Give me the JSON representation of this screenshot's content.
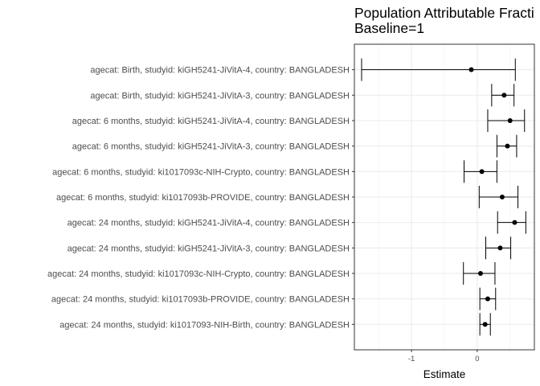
{
  "chart_data": {
    "type": "errorbar",
    "title_lines": [
      "Population Attributable Fracti",
      "Baseline=1"
    ],
    "xlabel": "Estimate",
    "ylabel": "",
    "xlim": [
      -1.87,
      0.87
    ],
    "xticks": [
      -1,
      0
    ],
    "xtick_labels": [
      "-1",
      "0"
    ],
    "grid": true,
    "categories": [
      "agecat: Birth, studyid: kiGH5241-JiVitA-4, country: BANGLADESH",
      "agecat: Birth, studyid: kiGH5241-JiVitA-3, country: BANGLADESH",
      "agecat: 6 months, studyid: kiGH5241-JiVitA-4, country: BANGLADESH",
      "agecat: 6 months, studyid: kiGH5241-JiVitA-3, country: BANGLADESH",
      "agecat: 6 months, studyid: ki1017093c-NIH-Crypto, country: BANGLADESH",
      "agecat: 6 months, studyid: ki1017093b-PROVIDE, country: BANGLADESH",
      "agecat: 24 months, studyid: kiGH5241-JiVitA-4, country: BANGLADESH",
      "agecat: 24 months, studyid: kiGH5241-JiVitA-3, country: BANGLADESH",
      "agecat: 24 months, studyid: ki1017093c-NIH-Crypto, country: BANGLADESH",
      "agecat: 24 months, studyid: ki1017093b-PROVIDE, country: BANGLADESH",
      "agecat: 24 months, studyid: ki1017093-NIH-Birth, country: BANGLADESH"
    ],
    "estimates": [
      -0.09,
      0.41,
      0.5,
      0.46,
      0.07,
      0.38,
      0.57,
      0.35,
      0.05,
      0.16,
      0.12
    ],
    "lower": [
      -1.76,
      0.22,
      0.16,
      0.3,
      -0.2,
      0.03,
      0.31,
      0.13,
      -0.21,
      0.04,
      0.04
    ],
    "upper": [
      0.58,
      0.56,
      0.72,
      0.6,
      0.3,
      0.62,
      0.74,
      0.51,
      0.27,
      0.28,
      0.2
    ]
  }
}
